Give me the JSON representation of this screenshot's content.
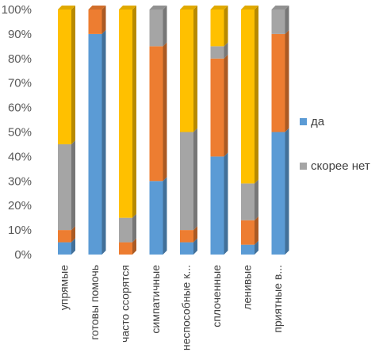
{
  "chart_data": {
    "type": "bar",
    "stacked": true,
    "percent": true,
    "style": "3d-column",
    "categories": [
      "упрямые",
      "готовы помочь",
      "часто ссорятся",
      "симпатичные",
      "неспособные к...",
      "сплоченные",
      "ленивые",
      "приятные в..."
    ],
    "series": [
      {
        "name": "да",
        "color": "#5b9bd5",
        "values": [
          5,
          90,
          0,
          30,
          5,
          40,
          4,
          50
        ]
      },
      {
        "name": "",
        "color": "#ed7d31",
        "values": [
          5,
          10,
          5,
          55,
          5,
          40,
          10,
          40
        ]
      },
      {
        "name": "скорее нет",
        "color": "#a5a5a5",
        "values": [
          35,
          0,
          10,
          15,
          40,
          5,
          15,
          10
        ]
      },
      {
        "name": "",
        "color": "#ffc000",
        "values": [
          55,
          0,
          85,
          0,
          50,
          15,
          71,
          0
        ]
      }
    ],
    "yticks": [
      "0%",
      "10%",
      "20%",
      "30%",
      "40%",
      "50%",
      "60%",
      "70%",
      "80%",
      "90%",
      "100%"
    ],
    "ylim": [
      0,
      100
    ],
    "grid": false,
    "legend_position": "right"
  }
}
